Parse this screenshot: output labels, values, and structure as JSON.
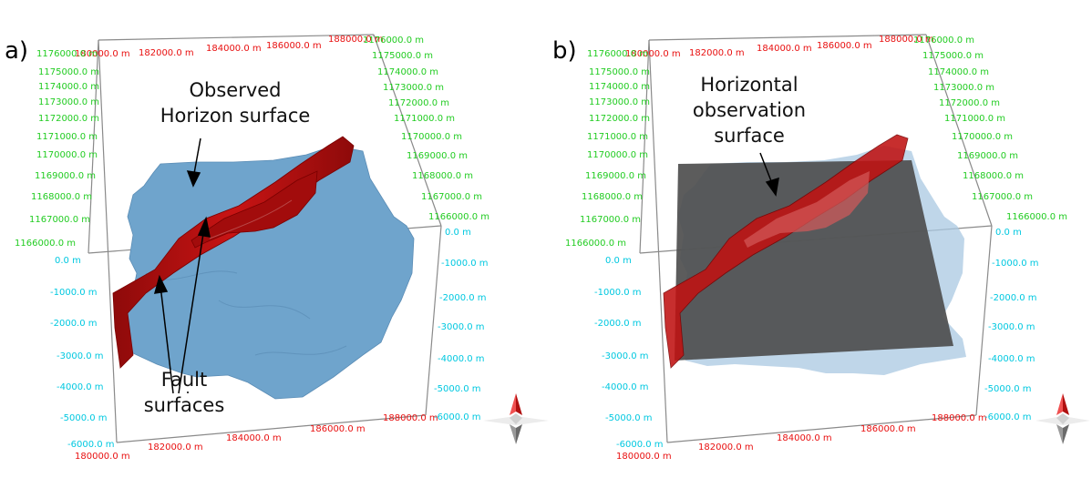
{
  "panels": [
    {
      "label": "a)",
      "x_ticks_top": [
        "180000.0 m",
        "182000.0 m",
        "184000.0 m",
        "186000.0 m",
        "188000.0 m"
      ],
      "x_ticks_bottom": [
        "180000.0 m",
        "182000.0 m",
        "184000.0 m",
        "186000.0 m",
        "188000.0 m"
      ],
      "y_ticks_left": [
        "1176000.0 m",
        "1175000.0 m",
        "1174000.0 m",
        "1173000.0 m",
        "1172000.0 m",
        "1171000.0 m",
        "1170000.0 m",
        "1169000.0 m",
        "1168000.0 m",
        "1167000.0 m",
        "1166000.0 m"
      ],
      "y_ticks_right": [
        "1176000.0 m",
        "1175000.0 m",
        "1174000.0 m",
        "1173000.0 m",
        "1172000.0 m",
        "1171000.0 m",
        "1170000.0 m",
        "1169000.0 m",
        "1168000.0 m",
        "1167000.0 m",
        "1166000.0 m"
      ],
      "z_ticks_left": [
        "0.0 m",
        "-1000.0 m",
        "-2000.0 m",
        "-3000.0 m",
        "-4000.0 m",
        "-5000.0 m",
        "-6000.0 m"
      ],
      "z_ticks_right": [
        "0.0 m",
        "-1000.0 m",
        "-2000.0 m",
        "-3000.0 m",
        "-4000.0 m",
        "-5000.0 m",
        "-6000.0 m"
      ],
      "annotation_1": [
        "Observed",
        "Horizon surface"
      ],
      "annotation_2": [
        "Fault",
        "surfaces"
      ]
    },
    {
      "label": "b)",
      "x_ticks_top": [
        "180000.0 m",
        "182000.0 m",
        "184000.0 m",
        "186000.0 m",
        "188000.0 m"
      ],
      "x_ticks_bottom": [
        "180000.0 m",
        "182000.0 m",
        "184000.0 m",
        "186000.0 m",
        "188000.0 m"
      ],
      "y_ticks_left": [
        "1176000.0 m",
        "1175000.0 m",
        "1174000.0 m",
        "1173000.0 m",
        "1172000.0 m",
        "1171000.0 m",
        "1170000.0 m",
        "1169000.0 m",
        "1168000.0 m",
        "1167000.0 m",
        "1166000.0 m"
      ],
      "y_ticks_right": [
        "1176000.0 m",
        "1175000.0 m",
        "1174000.0 m",
        "1173000.0 m",
        "1172000.0 m",
        "1171000.0 m",
        "1170000.0 m",
        "1169000.0 m",
        "1168000.0 m",
        "1167000.0 m",
        "1166000.0 m"
      ],
      "z_ticks_left": [
        "0.0 m",
        "-1000.0 m",
        "-2000.0 m",
        "-3000.0 m",
        "-4000.0 m",
        "-5000.0 m",
        "-6000.0 m"
      ],
      "z_ticks_right": [
        "0.0 m",
        "-1000.0 m",
        "-2000.0 m",
        "-3000.0 m",
        "-4000.0 m",
        "-5000.0 m",
        "-6000.0 m"
      ],
      "annotation_1": [
        "Horizontal",
        "observation",
        "surface"
      ]
    }
  ],
  "colors": {
    "x_axis": "#e81010",
    "y_axis": "#22cc22",
    "z_axis": "#00c8e0",
    "horizon": "#6fa4cc",
    "fault": "#b50f0f",
    "plane": "#5a5a5a"
  },
  "icons": [
    "orientation-compass-icon",
    "orientation-compass-icon"
  ]
}
